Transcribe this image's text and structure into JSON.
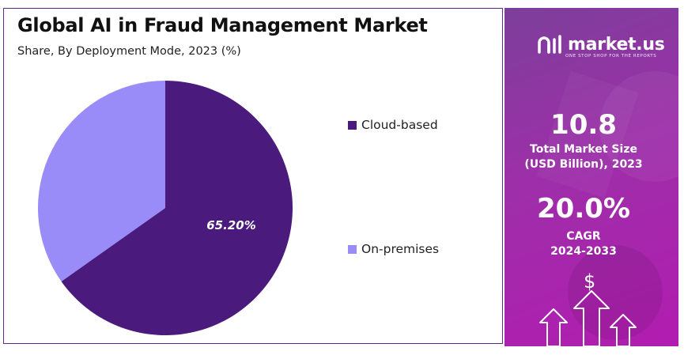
{
  "header": {
    "title": "Global AI in Fraud Management Market",
    "subtitle": "Share, By Deployment Mode, 2023 (%)"
  },
  "chart_data": {
    "type": "pie",
    "categories": [
      "Cloud-based",
      "On-premises"
    ],
    "values": [
      65.2,
      34.8
    ],
    "data_labels": [
      "65.20%",
      ""
    ],
    "colors": [
      "#4a1a7c",
      "#9a8cf8"
    ],
    "legend_position": "right",
    "title": "Global AI in Fraud Management Market",
    "subtitle": "Share, By Deployment Mode, 2023 (%)"
  },
  "sidebar": {
    "brand": "market.us",
    "tagline": "ONE STOP SHOP FOR THE REPORTS",
    "market_size_value": "10.8",
    "market_size_label_line1": "Total Market Size",
    "market_size_label_line2": "(USD Billion), 2023",
    "cagr_value": "20.0%",
    "cagr_label_line1": "CAGR",
    "cagr_label_line2": "2024-2033",
    "dollar_symbol": "$",
    "icons": [
      "logo-icon",
      "up-arrow-icon",
      "dollar-icon"
    ]
  }
}
